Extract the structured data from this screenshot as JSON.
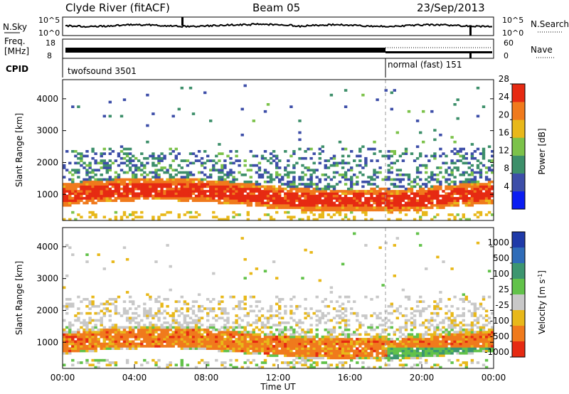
{
  "header": {
    "station": "Clyde River (fitACF)",
    "beam": "Beam 05",
    "date": "23/Sep/2013"
  },
  "panel_labels": {
    "nsky": "N.Sky",
    "nsky_hi": "10^5",
    "nsky_lo": "10^0",
    "nsearch": "N.Search",
    "nsearch_hi": "10^5",
    "nsearch_lo": "10^0",
    "freq_line1": "Freq.",
    "freq_line2": "[MHz]",
    "freq_hi": "18",
    "freq_lo": "8",
    "nave": "Nave",
    "nave_hi": "60",
    "nave_lo": "0",
    "cpid": "CPID",
    "cpid_1": "twofsound 3501",
    "cpid_2": "normal (fast) 151"
  },
  "chart_data": [
    {
      "type": "heatmap",
      "title": "",
      "xlabel": "",
      "ylabel": "Slant Range [km]",
      "xlim": [
        "00:00",
        "24:00"
      ],
      "ylim": [
        180,
        4600
      ],
      "yticks": [
        1000,
        2000,
        3000,
        4000
      ],
      "colorbar": {
        "label": "Power [dB]",
        "ticks": [
          "4",
          "8",
          "12",
          "16",
          "20",
          "24",
          "28"
        ],
        "colors": [
          "#0a1cf2",
          "#3d4ea8",
          "#3d8f6a",
          "#7cc24a",
          "#e8b81a",
          "#f07a1c",
          "#e62a12"
        ],
        "range": [
          0,
          30
        ]
      },
      "mode_change_time": "18:07"
    },
    {
      "type": "heatmap",
      "title": "",
      "xlabel": "Time UT",
      "ylabel": "Slant Range [km]",
      "xlim": [
        "00:00",
        "24:00"
      ],
      "ylim": [
        180,
        4600
      ],
      "xticks": [
        "00:00",
        "04:00",
        "08:00",
        "12:00",
        "16:00",
        "20:00",
        "00:00"
      ],
      "yticks": [
        1000,
        2000,
        3000,
        4000
      ],
      "colorbar": {
        "label": "Velocity [m s^-1]",
        "ticks": [
          "1000",
          "500",
          "100",
          "25",
          "-25",
          "-100",
          "-500",
          "-1000"
        ],
        "colors": [
          "#1f3aa8",
          "#2f6cb8",
          "#3d9670",
          "#62c24a",
          "#c8c8c8",
          "#e8b81a",
          "#f07a1c",
          "#e62a12"
        ],
        "range": [
          -1000,
          1000
        ]
      },
      "mode_change_time": "18:07"
    }
  ]
}
